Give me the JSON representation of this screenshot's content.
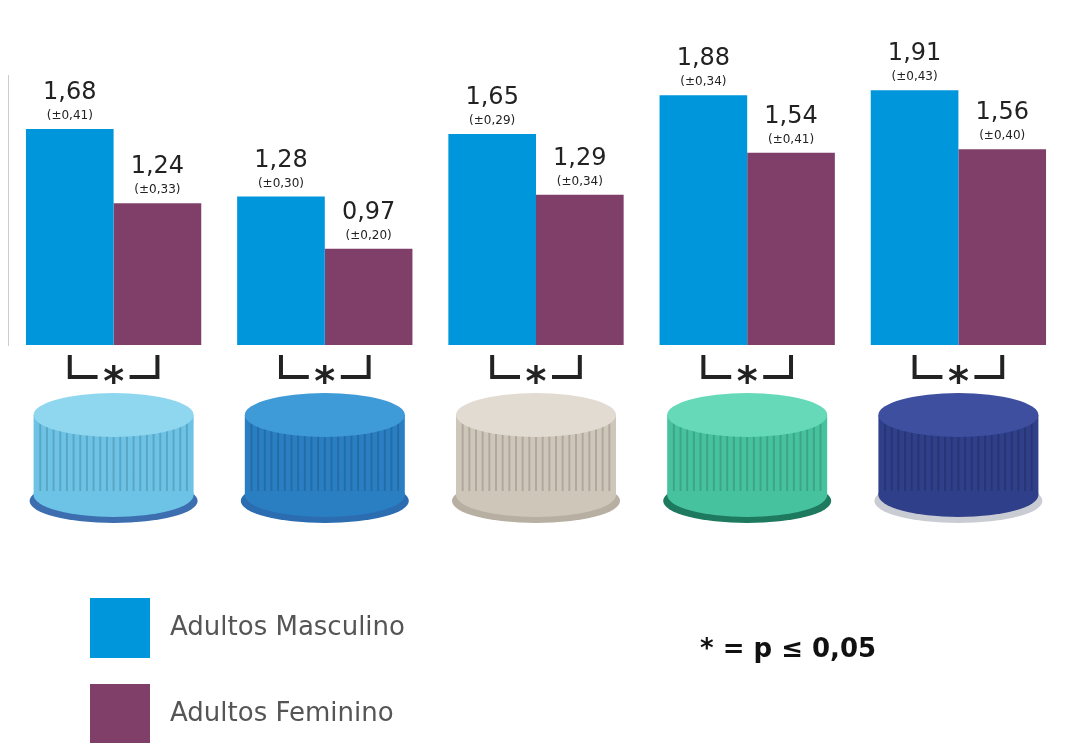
{
  "chart_data": {
    "type": "bar",
    "categories": [
      null,
      null,
      null,
      null,
      null
    ],
    "series": [
      {
        "name": "Adultos Masculino",
        "color": "#0096db",
        "values": [
          1.68,
          1.28,
          1.65,
          1.88,
          1.91
        ],
        "value_labels": [
          "1,68",
          "1,28",
          "1,65",
          "1,88",
          "1,91"
        ],
        "errors": [
          0.41,
          0.3,
          0.29,
          0.34,
          0.43
        ],
        "error_labels": [
          "(±0,41)",
          "(±0,30)",
          "(±0,29)",
          "(±0,34)",
          "(±0,43)"
        ]
      },
      {
        "name": "Adultos Feminino",
        "color": "#7f3f69",
        "values": [
          1.24,
          0.97,
          1.29,
          1.54,
          1.56
        ],
        "value_labels": [
          "1,24",
          "0,97",
          "1,29",
          "1,54",
          "1,56"
        ],
        "errors": [
          0.33,
          0.2,
          0.34,
          0.41,
          0.4
        ],
        "error_labels": [
          "(±0,33)",
          "(±0,20)",
          "(±0,34)",
          "(±0,41)",
          "(±0,40)"
        ]
      }
    ],
    "significance": [
      "*",
      "*",
      "*",
      "*",
      "*"
    ],
    "annotation": "* = p ≤ 0,05",
    "ylim": [
      0.4,
      2.0
    ],
    "yticks": [],
    "grid": false,
    "legend": "bottom-left",
    "data_labels": true,
    "tick_labels": false
  }
}
